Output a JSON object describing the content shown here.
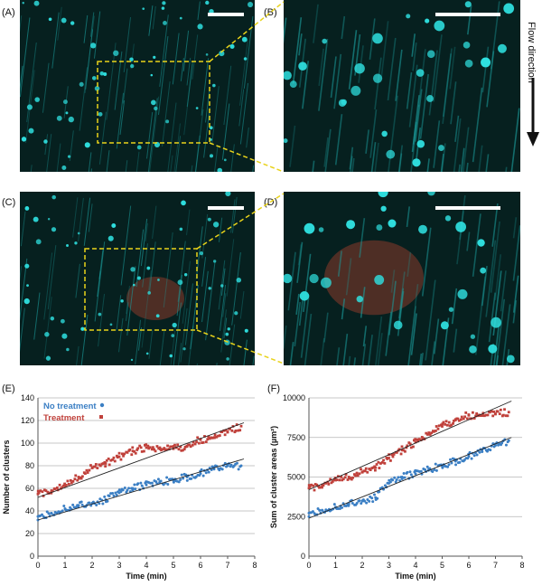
{
  "panels": {
    "A": "(A)",
    "B": "(B)",
    "C": "(C)",
    "D": "(D)",
    "E": "(E)",
    "F": "(F)"
  },
  "flow_label": "Flow direction",
  "colors": {
    "micro_bg": "#06201f",
    "particle": "#2fe0e0",
    "streak": "#1b9c9c",
    "cluster": "#8a3a2a",
    "zoom_box": "#e8d21a",
    "no_treatment": "#3b7fc4",
    "treatment": "#c0413b"
  },
  "chart_data": [
    {
      "id": "E",
      "type": "scatter",
      "title": "",
      "xlabel": "Time (min)",
      "ylabel": "Number of clusters",
      "xlim": [
        0,
        8
      ],
      "ylim": [
        0,
        140
      ],
      "xticks": [
        "0",
        "1",
        "2",
        "3",
        "4",
        "5",
        "6",
        "7",
        "8"
      ],
      "yticks": [
        "0",
        "20",
        "40",
        "60",
        "80",
        "100",
        "120",
        "140"
      ],
      "legend_position": "top-left",
      "series": [
        {
          "name": "No treatment",
          "color": "#3b7fc4",
          "marker": "circle",
          "x": [
            0,
            0.5,
            1,
            1.5,
            2,
            2.5,
            3,
            3.5,
            4,
            4.5,
            5,
            5.5,
            6,
            6.5,
            7,
            7.5
          ],
          "values": [
            32,
            38,
            42,
            45,
            47,
            50,
            56,
            60,
            63,
            66,
            67,
            70,
            73,
            77,
            80,
            80
          ],
          "trend": [
            [
              0,
              32
            ],
            [
              7.6,
              86
            ]
          ]
        },
        {
          "name": "Treatment",
          "color": "#c0413b",
          "marker": "square",
          "x": [
            0,
            0.5,
            1,
            1.5,
            2,
            2.5,
            3,
            3.5,
            4,
            4.5,
            5,
            5.5,
            6,
            6.5,
            7,
            7.5
          ],
          "values": [
            55,
            58,
            62,
            70,
            78,
            82,
            88,
            93,
            96,
            96,
            95,
            97,
            103,
            105,
            110,
            115
          ],
          "trend": [
            [
              0,
              52
            ],
            [
              7.6,
              118
            ]
          ]
        }
      ]
    },
    {
      "id": "F",
      "type": "scatter",
      "title": "",
      "xlabel": "Time (min)",
      "ylabel": "Sum of cluster areas (µm²)",
      "xlim": [
        0,
        8
      ],
      "ylim": [
        0,
        10000
      ],
      "xticks": [
        "0",
        "1",
        "2",
        "3",
        "4",
        "5",
        "6",
        "7",
        "8"
      ],
      "yticks": [
        "0",
        "2500",
        "5000",
        "7500",
        "10000"
      ],
      "series": [
        {
          "name": "No treatment",
          "color": "#3b7fc4",
          "marker": "circle",
          "x": [
            0,
            0.5,
            1,
            1.5,
            2,
            2.5,
            3,
            3.5,
            4,
            4.5,
            5,
            5.5,
            6,
            6.5,
            7,
            7.5
          ],
          "values": [
            2500,
            2900,
            3100,
            3300,
            3500,
            3700,
            4600,
            5000,
            5200,
            5500,
            5700,
            6000,
            6300,
            6600,
            7000,
            7300
          ],
          "trend": [
            [
              0,
              2400
            ],
            [
              7.6,
              7500
            ]
          ]
        },
        {
          "name": "Treatment",
          "color": "#c0413b",
          "marker": "square",
          "x": [
            0,
            0.5,
            1,
            1.5,
            2,
            2.5,
            3,
            3.5,
            4,
            4.5,
            5,
            5.5,
            6,
            6.5,
            7,
            7.5
          ],
          "values": [
            4300,
            4500,
            4800,
            5000,
            5300,
            5600,
            6200,
            6700,
            7200,
            7800,
            8200,
            8600,
            8900,
            8900,
            9000,
            9100
          ],
          "trend": [
            [
              0,
              4200
            ],
            [
              7.6,
              9800
            ]
          ]
        }
      ]
    }
  ]
}
